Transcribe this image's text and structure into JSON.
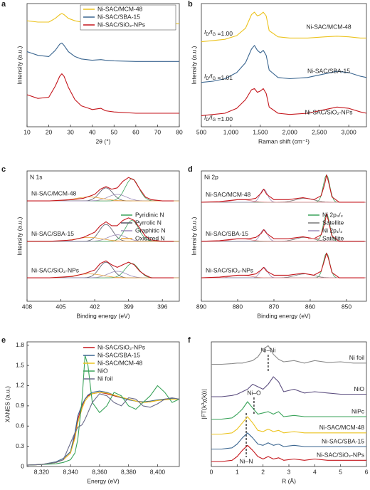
{
  "chart_data": [
    {
      "label": "a",
      "type": "line",
      "xlabel": "2θ (°)",
      "ylabel": "Intensity (a.u.)",
      "xlim": [
        10,
        80
      ],
      "ylim": [
        0,
        100
      ],
      "xticks": [
        10,
        20,
        30,
        40,
        50,
        60,
        70,
        80
      ],
      "legend": "upper right",
      "x": [
        10,
        15,
        20,
        23,
        25,
        26,
        27,
        29,
        32,
        35,
        40,
        44,
        46,
        50,
        60,
        70,
        80
      ],
      "series": [
        {
          "name": "Ni-SAC/MCM-48",
          "color": "#ecc31e",
          "values": [
            86,
            85,
            85,
            88,
            91,
            92,
            91,
            88,
            86,
            85,
            84.5,
            85,
            84.5,
            84,
            83.5,
            83.5,
            83.5
          ]
        },
        {
          "name": "Ni-SAC/SBA-15",
          "color": "#3b6690",
          "values": [
            61,
            58,
            57,
            62,
            67,
            68,
            66,
            61,
            57,
            55,
            54,
            54.5,
            54,
            53.5,
            53,
            53,
            53
          ]
        },
        {
          "name": "Ni-SAC/SiO₂-NPs",
          "color": "#c4161c",
          "values": [
            26,
            23,
            24,
            33,
            41,
            43,
            41,
            32,
            22,
            17,
            14,
            15,
            13,
            12,
            11,
            11,
            11
          ]
        }
      ]
    },
    {
      "label": "b",
      "type": "line",
      "xlabel": "Raman shift (cm⁻¹)",
      "ylabel": "Intensity (a.u.)",
      "xlim": [
        500,
        3300
      ],
      "ylim": [
        0,
        100
      ],
      "xticks": [
        500,
        {
          "value": 1000,
          "label": "1,000"
        },
        {
          "value": 1500,
          "label": "1,500"
        },
        {
          "value": 2000,
          "label": "2,000"
        },
        {
          "value": 2500,
          "label": "2,500"
        },
        {
          "value": 3000,
          "label": "3,000"
        }
      ],
      "ratio_parts": [
        "I",
        "D",
        "/I",
        "G"
      ],
      "x": [
        500,
        700,
        900,
        1100,
        1250,
        1350,
        1400,
        1450,
        1500,
        1550,
        1600,
        1650,
        1800,
        2000,
        2300,
        2600,
        2800,
        3000,
        3200,
        3300
      ],
      "series": [
        {
          "name": "Ni-SAC/MCM-48",
          "color": "#ecc31e",
          "ratio_label": " =1.00",
          "values": [
            69,
            70,
            71,
            74,
            80,
            91,
            93,
            90,
            91,
            93,
            90,
            78,
            73,
            72,
            72,
            73,
            73.5,
            73,
            72,
            72
          ]
        },
        {
          "name": "Ni-SAC/SBA-15",
          "color": "#3b6690",
          "ratio_label": " =1.01",
          "values": [
            36,
            37,
            39,
            44,
            52,
            63,
            66,
            62,
            60,
            62,
            58,
            46,
            40,
            39,
            40,
            43,
            45,
            44,
            41,
            40
          ]
        },
        {
          "name": "Ni-SAC/SiO₂-NPs",
          "color": "#c4161c",
          "ratio_label": " =1.00",
          "values": [
            9,
            10,
            11,
            15,
            22,
            30,
            31,
            28,
            29,
            31,
            27,
            16,
            11,
            10,
            11,
            14,
            16,
            15,
            12,
            11
          ]
        }
      ]
    },
    {
      "label": "c",
      "type": "line",
      "title": "N 1s",
      "xlabel": "Binding energy (eV)",
      "ylabel": "Intensity (a.u.)",
      "xlim": [
        408,
        394.5
      ],
      "ylim": [
        0,
        100
      ],
      "xticks": [
        408,
        405,
        402,
        399,
        396
      ],
      "legend": "center right",
      "components": [
        {
          "name": "Pyridinic N",
          "color": "#3aa35a"
        },
        {
          "name": "Pyrrolic N",
          "color": "#555566"
        },
        {
          "name": "Graphitic N",
          "color": "#9c8cb8"
        },
        {
          "name": "Oxidized N",
          "color": "#e8a33c"
        }
      ],
      "x": [
        408,
        406,
        404,
        403,
        402,
        401.5,
        401,
        400.5,
        400,
        399.5,
        399,
        398.5,
        398,
        397.5,
        397,
        396,
        395
      ],
      "series": [
        {
          "name": "Ni-SAC/MCM-48",
          "color": "#c4161c",
          "base": 77,
          "values": [
            77,
            77,
            78,
            79,
            82,
            86,
            88,
            86,
            87,
            92,
            95,
            93,
            86,
            80,
            78,
            77,
            77
          ],
          "peaks": [
            {
              "center": 398.7,
              "height": 17,
              "width": 0.6
            },
            {
              "center": 401,
              "height": 10,
              "width": 0.6
            },
            {
              "center": 400,
              "height": 5,
              "width": 0.8
            },
            {
              "center": 402.5,
              "height": 3,
              "width": 1.2
            }
          ]
        },
        {
          "name": "Ni-SAC/SBA-15",
          "color": "#c4161c",
          "base": 46,
          "values": [
            46,
            46,
            47,
            49,
            53,
            58,
            61,
            58,
            58,
            62,
            64,
            62,
            56,
            50,
            47,
            46,
            46
          ],
          "peaks": [
            {
              "center": 398.7,
              "height": 16,
              "width": 0.6
            },
            {
              "center": 401,
              "height": 13,
              "width": 0.6
            },
            {
              "center": 400,
              "height": 5,
              "width": 0.8
            },
            {
              "center": 402.5,
              "height": 3,
              "width": 1.2
            }
          ]
        },
        {
          "name": "Ni-SAC/SiO₂-NPs",
          "color": "#c4161c",
          "base": 18,
          "values": [
            18,
            18,
            19,
            21,
            24,
            29,
            31,
            28,
            26,
            28,
            30,
            28,
            23,
            20,
            18,
            18,
            18
          ],
          "peaks": [
            {
              "center": 398.7,
              "height": 11,
              "width": 0.6
            },
            {
              "center": 401,
              "height": 12,
              "width": 0.6
            },
            {
              "center": 400,
              "height": 5,
              "width": 0.8
            },
            {
              "center": 402.5,
              "height": 3,
              "width": 1.2
            }
          ]
        }
      ]
    },
    {
      "label": "d",
      "type": "line",
      "title": "Ni 2p",
      "xlabel": "Binding energy (eV)",
      "ylabel": "Intensity (a.u.)",
      "xlim": [
        890,
        844.5
      ],
      "ylim": [
        0,
        100
      ],
      "xticks": [
        890,
        880,
        870,
        860,
        850
      ],
      "legend": "center right",
      "components": [
        {
          "name": "Ni 2p₃/₂",
          "color": "#3aa35a"
        },
        {
          "name": "Satellite",
          "color": "#777777"
        },
        {
          "name": "Ni 2p₁/₂",
          "color": "#9c8cb8"
        },
        {
          "name": "Satellite",
          "color": "#e88a8a"
        }
      ],
      "x": [
        890,
        885,
        880,
        877,
        875,
        873.5,
        872.8,
        872,
        870,
        866,
        862,
        859,
        857,
        856,
        855.5,
        855,
        854,
        852,
        848,
        845
      ],
      "series": [
        {
          "name": "Ni-SAC/MCM-48",
          "color": "#c4161c",
          "base": 76,
          "values": [
            76,
            76.5,
            78,
            78,
            79,
            83,
            86,
            82,
            78,
            78,
            79.5,
            78,
            81,
            90,
            97,
            92,
            80,
            76,
            76,
            76
          ],
          "peaks": [
            {
              "center": 855.5,
              "height": 21,
              "width": 0.9
            },
            {
              "center": 861.5,
              "height": 3,
              "width": 2.5
            },
            {
              "center": 872.8,
              "height": 10,
              "width": 1
            },
            {
              "center": 879,
              "height": 2,
              "width": 2.5
            }
          ]
        },
        {
          "name": "Ni-SAC/SBA-15",
          "color": "#c4161c",
          "base": 46,
          "values": [
            46,
            46.5,
            48,
            48,
            49,
            52,
            55,
            52,
            48,
            48,
            49.5,
            48,
            51,
            60,
            67,
            62,
            50,
            46,
            46,
            46
          ],
          "peaks": [
            {
              "center": 855.5,
              "height": 21,
              "width": 0.9
            },
            {
              "center": 861.5,
              "height": 3,
              "width": 2.5
            },
            {
              "center": 872.8,
              "height": 9,
              "width": 1
            },
            {
              "center": 879,
              "height": 2,
              "width": 2.5
            }
          ]
        },
        {
          "name": "Ni-SAC/SiO₂-NPs",
          "color": "#c4161c",
          "base": 18,
          "values": [
            18,
            18.5,
            20,
            20,
            21,
            24,
            26,
            23,
            20,
            20,
            21.5,
            20,
            23,
            32,
            37,
            33,
            22,
            18,
            18,
            18
          ],
          "peaks": [
            {
              "center": 855.5,
              "height": 19,
              "width": 0.9
            },
            {
              "center": 861.5,
              "height": 3,
              "width": 2.5
            },
            {
              "center": 872.8,
              "height": 8,
              "width": 1
            },
            {
              "center": 879,
              "height": 2,
              "width": 2.5
            }
          ]
        }
      ]
    },
    {
      "label": "e",
      "type": "line",
      "xlabel": "Energy (eV)",
      "ylabel": "XANES (a.u.)",
      "xlim": [
        8310,
        8415
      ],
      "ylim": [
        0,
        1.85
      ],
      "xticks": [
        {
          "value": 8320,
          "label": "8,320"
        },
        {
          "value": 8340,
          "label": "8,340"
        },
        {
          "value": 8360,
          "label": "8,360"
        },
        {
          "value": 8380,
          "label": "8,380"
        },
        {
          "value": 8400,
          "label": "8,400"
        }
      ],
      "yticks": [
        0,
        0.3,
        0.6,
        0.9,
        1.2,
        1.5,
        1.8
      ],
      "legend": "upper right",
      "x": [
        8310,
        8320,
        8330,
        8335,
        8340,
        8343,
        8345,
        8348,
        8350,
        8352,
        8355,
        8360,
        8365,
        8370,
        8375,
        8380,
        8385,
        8390,
        8395,
        8400,
        8405,
        8410,
        8415
      ],
      "series": [
        {
          "name": "Ni-SAC/SiO₂-NPs",
          "color": "#c4161c",
          "values": [
            0.02,
            0.03,
            0.06,
            0.1,
            0.2,
            0.45,
            0.7,
            0.9,
            1.0,
            1.05,
            1.08,
            1.1,
            1.08,
            1.05,
            1.02,
            1.0,
            0.97,
            0.95,
            0.96,
            0.98,
            1.0,
            1.0,
            1.0
          ]
        },
        {
          "name": "Ni-SAC/SBA-15",
          "color": "#3b6690",
          "values": [
            0.02,
            0.03,
            0.07,
            0.12,
            0.22,
            0.5,
            0.75,
            0.92,
            1.0,
            1.06,
            1.1,
            1.12,
            1.1,
            1.06,
            1.02,
            0.99,
            0.97,
            0.96,
            0.97,
            0.99,
            1.0,
            1.01,
            1.0
          ]
        },
        {
          "name": "Ni-SAC/MCM-48",
          "color": "#ecc31e",
          "values": [
            0.02,
            0.03,
            0.06,
            0.1,
            0.2,
            0.42,
            0.65,
            0.86,
            0.97,
            1.03,
            1.08,
            1.1,
            1.09,
            1.06,
            1.03,
            1.0,
            0.97,
            0.95,
            0.96,
            0.98,
            0.99,
            1.0,
            1.0
          ]
        },
        {
          "name": "NiO",
          "color": "#3aa35a",
          "values": [
            0.02,
            0.03,
            0.04,
            0.06,
            0.1,
            0.2,
            0.4,
            1.0,
            1.65,
            1.5,
            0.95,
            0.8,
            0.9,
            1.1,
            1.05,
            0.9,
            0.85,
            0.95,
            1.05,
            1.2,
            1.1,
            0.95,
            1.0
          ]
        },
        {
          "name": "Ni foil",
          "color": "#6b6b8a",
          "values": [
            0.02,
            0.03,
            0.06,
            0.1,
            0.35,
            0.5,
            0.58,
            0.62,
            0.7,
            0.8,
            0.95,
            1.08,
            1.05,
            0.95,
            0.9,
            1.02,
            1.0,
            0.9,
            0.88,
            0.93,
            1.0,
            1.02,
            1.0
          ]
        }
      ]
    },
    {
      "label": "f",
      "type": "line",
      "xlabel": "R (Å)",
      "ylabel": "|FT(k³χ(k))|",
      "xlim": [
        0,
        6
      ],
      "ylim": [
        0,
        100
      ],
      "xticks": [
        0,
        1,
        2,
        3,
        4,
        5,
        6
      ],
      "markers": [
        {
          "x": 2.2,
          "label": "Ni–Ni"
        },
        {
          "x": 1.65,
          "label": "Ni–O"
        },
        {
          "x": 1.35,
          "label": "Ni–N"
        }
      ],
      "x": [
        0,
        0.4,
        0.8,
        1.0,
        1.2,
        1.4,
        1.6,
        1.8,
        2.0,
        2.2,
        2.4,
        2.6,
        2.8,
        3.2,
        3.6,
        4.0,
        4.5,
        5.0,
        5.5,
        6.0
      ],
      "series": [
        {
          "name": "Ni foil",
          "color": "#8a8a8a",
          "values": [
            82,
            82,
            82.5,
            83,
            83,
            84,
            85,
            88,
            94,
            97,
            90,
            86,
            84,
            85,
            83,
            85,
            83.5,
            84,
            83,
            83
          ]
        },
        {
          "name": "NiO",
          "color": "#5d4f80",
          "values": [
            56,
            56,
            57,
            58,
            60,
            62,
            66,
            64,
            62,
            66,
            72,
            68,
            60,
            62,
            59,
            60,
            59,
            58,
            58,
            58
          ]
        },
        {
          "name": "NiPc",
          "color": "#3aa35a",
          "values": [
            38,
            38,
            39,
            42,
            46,
            52,
            47,
            42,
            43,
            44,
            42,
            44,
            40,
            41,
            40,
            40,
            40,
            40,
            40,
            40
          ]
        },
        {
          "name": "Ni-SAC/MCM-48",
          "color": "#ecc31e",
          "values": [
            26,
            26,
            27,
            30,
            35,
            40,
            35,
            29,
            28,
            30,
            28,
            29,
            27,
            28,
            27,
            27,
            27,
            27,
            27,
            27
          ]
        },
        {
          "name": "Ni-SAC/SBA-15",
          "color": "#3b6690",
          "values": [
            14,
            14,
            15,
            18,
            23,
            27,
            23,
            18,
            17,
            19,
            17,
            18,
            16,
            17,
            16,
            16,
            16,
            16,
            16,
            16
          ]
        },
        {
          "name": "Ni-SAC/SiO₂-NPs",
          "color": "#c4161c",
          "values": [
            4,
            4,
            5,
            8,
            13,
            17,
            13,
            8,
            6,
            8,
            6,
            7,
            5,
            6,
            5,
            6,
            5,
            5,
            5,
            5
          ]
        }
      ]
    }
  ]
}
